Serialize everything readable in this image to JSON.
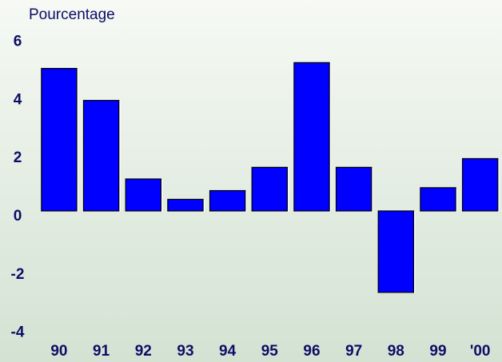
{
  "chart_data": {
    "type": "bar",
    "title": "Pourcentage",
    "categories": [
      "90",
      "91",
      "92",
      "93",
      "94",
      "95",
      "96",
      "97",
      "98",
      "99",
      "'00"
    ],
    "values": [
      4.9,
      3.8,
      1.1,
      0.4,
      0.7,
      1.5,
      5.1,
      1.5,
      -2.8,
      0.8,
      1.8
    ],
    "color": "#0000ff",
    "ylim": [
      -4,
      6
    ],
    "yticks": [
      -4,
      -2,
      0,
      2,
      4,
      6
    ],
    "grid": false
  }
}
